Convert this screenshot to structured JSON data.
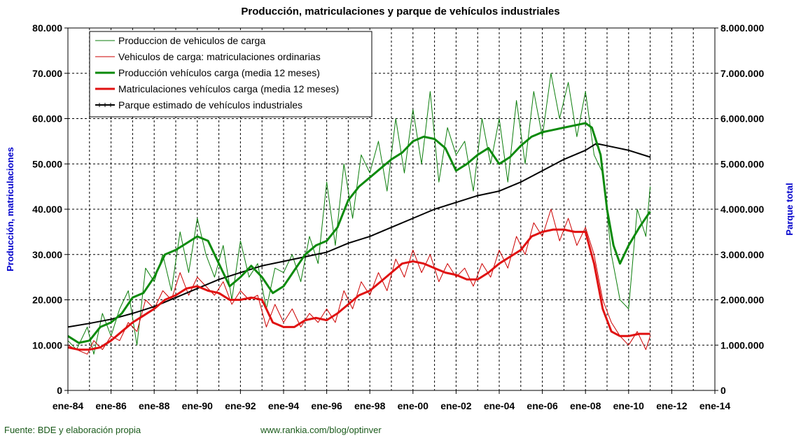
{
  "chart_data": {
    "type": "line",
    "title": "Producción, matriculaciones y parque de vehículos industriales",
    "ylabel": "Producción, matriculaciones",
    "y2label": "Parque total",
    "ylim": [
      0,
      80000
    ],
    "y2lim": [
      0,
      8000000
    ],
    "y_ticks": [
      "0",
      "10.000",
      "20.000",
      "30.000",
      "40.000",
      "50.000",
      "60.000",
      "70.000",
      "80.000"
    ],
    "y2_ticks": [
      "0",
      "1.000.000",
      "2.000.000",
      "3.000.000",
      "4.000.000",
      "5.000.000",
      "6.000.000",
      "7.000.000",
      "8.000.000"
    ],
    "x_ticks": [
      "ene-84",
      "ene-86",
      "ene-88",
      "ene-90",
      "ene-92",
      "ene-94",
      "ene-96",
      "ene-98",
      "ene-00",
      "ene-02",
      "ene-04",
      "ene-06",
      "ene-08",
      "ene-10",
      "ene-12",
      "ene-14"
    ],
    "xlim": [
      1984,
      2014
    ],
    "grid": true,
    "legend_position": "top-left",
    "series": [
      {
        "name": "Produccion de vehiculos de carga",
        "axis": "left",
        "color": "#0b7d0b",
        "width": 1,
        "x": [
          1984.0,
          1984.4,
          1984.9,
          1985.2,
          1985.6,
          1986.0,
          1986.4,
          1986.8,
          1987.2,
          1987.6,
          1988.0,
          1988.4,
          1988.8,
          1989.2,
          1989.6,
          1990.0,
          1990.4,
          1990.8,
          1991.2,
          1991.6,
          1992.0,
          1992.4,
          1992.8,
          1993.2,
          1993.6,
          1994.0,
          1994.4,
          1994.8,
          1995.2,
          1995.6,
          1996.0,
          1996.4,
          1996.8,
          1997.2,
          1997.6,
          1998.0,
          1998.4,
          1998.8,
          1999.2,
          1999.6,
          2000.0,
          2000.4,
          2000.8,
          2001.2,
          2001.6,
          2002.0,
          2002.4,
          2002.8,
          2003.2,
          2003.6,
          2004.0,
          2004.4,
          2004.8,
          2005.2,
          2005.6,
          2006.0,
          2006.4,
          2006.8,
          2007.2,
          2007.6,
          2008.0,
          2008.4,
          2008.8,
          2009.2,
          2009.6,
          2010.0,
          2010.4,
          2010.8,
          2011.0
        ],
        "values": [
          11000,
          9000,
          14000,
          8000,
          17000,
          12000,
          18000,
          22000,
          10000,
          27000,
          24000,
          30000,
          22000,
          35000,
          26000,
          38000,
          30000,
          25000,
          32000,
          20000,
          33000,
          25000,
          28000,
          18000,
          27000,
          26000,
          30000,
          24000,
          34000,
          28000,
          46000,
          32000,
          50000,
          38000,
          52000,
          48000,
          55000,
          44000,
          60000,
          48000,
          62000,
          50000,
          66000,
          46000,
          58000,
          52000,
          55000,
          44000,
          60000,
          50000,
          60000,
          46000,
          64000,
          50000,
          66000,
          56000,
          70000,
          60000,
          68000,
          56000,
          66000,
          52000,
          48000,
          30000,
          20000,
          18000,
          40000,
          34000,
          45000
        ]
      },
      {
        "name": "Vehiculos de carga: matriculaciones ordinarias",
        "axis": "left",
        "color": "#cc0000",
        "width": 1,
        "x": [
          1984.0,
          1984.4,
          1984.9,
          1985.2,
          1985.6,
          1986.0,
          1986.4,
          1986.8,
          1987.2,
          1987.6,
          1988.0,
          1988.4,
          1988.8,
          1989.2,
          1989.6,
          1990.0,
          1990.4,
          1990.8,
          1991.2,
          1991.6,
          1992.0,
          1992.4,
          1992.8,
          1993.2,
          1993.6,
          1994.0,
          1994.4,
          1994.8,
          1995.2,
          1995.6,
          1996.0,
          1996.4,
          1996.8,
          1997.2,
          1997.6,
          1998.0,
          1998.4,
          1998.8,
          1999.2,
          1999.6,
          2000.0,
          2000.4,
          2000.8,
          2001.2,
          2001.6,
          2002.0,
          2002.4,
          2002.8,
          2003.2,
          2003.6,
          2004.0,
          2004.4,
          2004.8,
          2005.2,
          2005.6,
          2006.0,
          2006.4,
          2006.8,
          2007.2,
          2007.6,
          2008.0,
          2008.4,
          2008.8,
          2009.2,
          2009.6,
          2010.0,
          2010.4,
          2010.8,
          2011.0
        ],
        "values": [
          10000,
          9000,
          8000,
          11000,
          9000,
          12000,
          11000,
          15000,
          13000,
          20000,
          18000,
          22000,
          20000,
          26000,
          21000,
          25000,
          23000,
          21000,
          24000,
          19000,
          22000,
          20000,
          21000,
          14000,
          19000,
          15000,
          18000,
          14000,
          17000,
          15000,
          18000,
          15000,
          22000,
          18000,
          24000,
          21000,
          26000,
          22000,
          29000,
          25000,
          31000,
          26000,
          30000,
          24000,
          28000,
          25000,
          27000,
          23000,
          28000,
          25000,
          31000,
          27000,
          34000,
          30000,
          37000,
          34000,
          40000,
          33000,
          38000,
          32000,
          36000,
          30000,
          20000,
          15000,
          12000,
          10000,
          13000,
          9000,
          12000
        ]
      },
      {
        "name": "Producción vehículos carga (media 12 meses)",
        "axis": "left",
        "color": "#0b8a0b",
        "width": 3,
        "x": [
          1984.0,
          1984.5,
          1985.0,
          1985.5,
          1986.0,
          1986.5,
          1987.0,
          1987.5,
          1988.0,
          1988.5,
          1989.0,
          1989.5,
          1990.0,
          1990.5,
          1991.0,
          1991.5,
          1992.0,
          1992.5,
          1993.0,
          1993.5,
          1994.0,
          1994.5,
          1995.0,
          1995.5,
          1996.0,
          1996.5,
          1997.0,
          1997.5,
          1998.0,
          1998.5,
          1999.0,
          1999.5,
          2000.0,
          2000.5,
          2001.0,
          2001.5,
          2002.0,
          2002.5,
          2003.0,
          2003.5,
          2004.0,
          2004.5,
          2005.0,
          2005.5,
          2006.0,
          2006.5,
          2007.0,
          2007.5,
          2008.0,
          2008.3,
          2008.7,
          2009.0,
          2009.3,
          2009.6,
          2010.0,
          2010.5,
          2011.0
        ],
        "values": [
          12000,
          10500,
          11000,
          14000,
          15000,
          17000,
          20500,
          21500,
          25000,
          30000,
          31000,
          32500,
          34000,
          33000,
          28000,
          23000,
          25000,
          27500,
          25000,
          21500,
          23000,
          26500,
          30000,
          32000,
          33000,
          36000,
          42000,
          45000,
          47000,
          49000,
          51000,
          52500,
          55000,
          56000,
          55500,
          53500,
          48500,
          50000,
          52000,
          53500,
          50000,
          51500,
          54000,
          56000,
          57000,
          57500,
          58000,
          58500,
          59000,
          58000,
          52000,
          40000,
          32000,
          28000,
          32000,
          36000,
          39500
        ]
      },
      {
        "name": "Matriculaciones vehículos carga (media 12 meses)",
        "axis": "left",
        "color": "#e01010",
        "width": 3,
        "x": [
          1984.0,
          1984.5,
          1985.0,
          1985.5,
          1986.0,
          1986.5,
          1987.0,
          1987.5,
          1988.0,
          1988.5,
          1989.0,
          1989.5,
          1990.0,
          1990.5,
          1991.0,
          1991.5,
          1992.0,
          1992.5,
          1993.0,
          1993.5,
          1994.0,
          1994.5,
          1995.0,
          1995.5,
          1996.0,
          1996.5,
          1997.0,
          1997.5,
          1998.0,
          1998.5,
          1999.0,
          1999.5,
          2000.0,
          2000.5,
          2001.0,
          2001.5,
          2002.0,
          2002.5,
          2003.0,
          2003.5,
          2004.0,
          2004.5,
          2005.0,
          2005.5,
          2006.0,
          2006.5,
          2007.0,
          2007.5,
          2008.0,
          2008.4,
          2008.8,
          2009.2,
          2009.6,
          2010.0,
          2010.5,
          2011.0
        ],
        "values": [
          9500,
          9000,
          9000,
          9500,
          11000,
          13000,
          15000,
          16500,
          18000,
          20000,
          21000,
          22500,
          23000,
          22000,
          21500,
          20000,
          20000,
          20500,
          20000,
          15000,
          14000,
          14000,
          15500,
          16000,
          15500,
          17000,
          19000,
          21000,
          22000,
          24000,
          26000,
          28000,
          28500,
          28000,
          27000,
          26000,
          25500,
          24500,
          24500,
          26000,
          28000,
          29500,
          31000,
          34000,
          35000,
          35500,
          35500,
          35000,
          35000,
          28000,
          18000,
          13000,
          12000,
          12000,
          12500,
          12500
        ]
      },
      {
        "name": "Parque estimado de vehículos industriales",
        "axis": "right",
        "color": "#000000",
        "width": 2,
        "x": [
          1984,
          1985,
          1986,
          1987,
          1988,
          1989,
          1990,
          1991,
          1992,
          1993,
          1994,
          1995,
          1996,
          1997,
          1998,
          1999,
          2000,
          2001,
          2002,
          2003,
          2004,
          2005,
          2006,
          2007,
          2008,
          2008.5,
          2009,
          2010,
          2011
        ],
        "values": [
          1400000,
          1480000,
          1570000,
          1700000,
          1850000,
          2050000,
          2250000,
          2450000,
          2600000,
          2750000,
          2850000,
          2950000,
          3050000,
          3250000,
          3400000,
          3600000,
          3800000,
          4000000,
          4150000,
          4300000,
          4400000,
          4600000,
          4850000,
          5100000,
          5300000,
          5450000,
          5400000,
          5300000,
          5150000
        ]
      }
    ]
  },
  "footer": {
    "source": "Fuente: BDE y elaboración propia",
    "url": "www.rankia.com/blog/optinver"
  }
}
